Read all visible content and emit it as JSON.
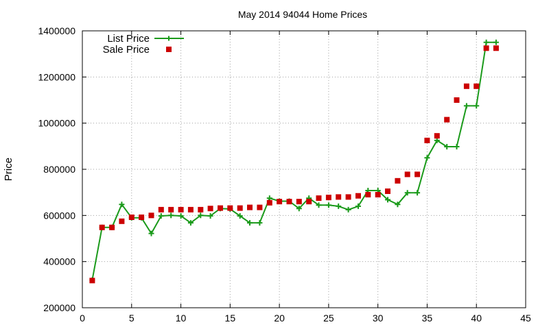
{
  "chart_data": {
    "type": "line",
    "title": "May 2014 94044 Home Prices",
    "xlabel": "",
    "ylabel": "Price",
    "xlim": [
      0,
      45
    ],
    "ylim": [
      200000,
      1400000
    ],
    "x_ticks": [
      0,
      5,
      10,
      15,
      20,
      25,
      30,
      35,
      40,
      45
    ],
    "y_ticks": [
      200000,
      400000,
      600000,
      800000,
      1000000,
      1200000,
      1400000
    ],
    "grid": true,
    "legend_position": "top-left",
    "series": [
      {
        "name": "List Price",
        "style": "line-with-plus-markers",
        "color": "#1a9a1a",
        "x": [
          1,
          2,
          3,
          4,
          5,
          6,
          7,
          8,
          9,
          10,
          11,
          12,
          13,
          14,
          15,
          16,
          17,
          18,
          19,
          20,
          21,
          22,
          23,
          24,
          25,
          26,
          27,
          28,
          29,
          30,
          31,
          32,
          33,
          34,
          35,
          36,
          37,
          38,
          39,
          40,
          41,
          42
        ],
        "y": [
          320000,
          548000,
          548000,
          648000,
          590000,
          590000,
          522000,
          598000,
          600000,
          598000,
          568000,
          600000,
          598000,
          630000,
          628000,
          598000,
          568000,
          568000,
          675000,
          662000,
          662000,
          630000,
          675000,
          645000,
          645000,
          640000,
          625000,
          640000,
          708000,
          708000,
          668000,
          648000,
          698000,
          698000,
          850000,
          925000,
          898000,
          898000,
          1075000,
          1075000,
          1350000,
          1350000
        ]
      },
      {
        "name": "Sale Price",
        "style": "square-markers",
        "color": "#cc0000",
        "x": [
          1,
          2,
          3,
          4,
          5,
          6,
          7,
          8,
          9,
          10,
          11,
          12,
          13,
          14,
          15,
          16,
          17,
          18,
          19,
          20,
          21,
          22,
          23,
          24,
          25,
          26,
          27,
          28,
          29,
          30,
          31,
          32,
          33,
          34,
          35,
          36,
          37,
          38,
          39,
          40,
          41,
          42
        ],
        "y": [
          318000,
          548000,
          548000,
          575000,
          592000,
          592000,
          600000,
          625000,
          625000,
          625000,
          625000,
          625000,
          630000,
          632000,
          632000,
          632000,
          635000,
          635000,
          655000,
          660000,
          660000,
          660000,
          660000,
          675000,
          678000,
          680000,
          680000,
          685000,
          690000,
          690000,
          705000,
          750000,
          778000,
          778000,
          925000,
          945000,
          1015000,
          1100000,
          1160000,
          1160000,
          1325000,
          1325000
        ]
      }
    ]
  }
}
